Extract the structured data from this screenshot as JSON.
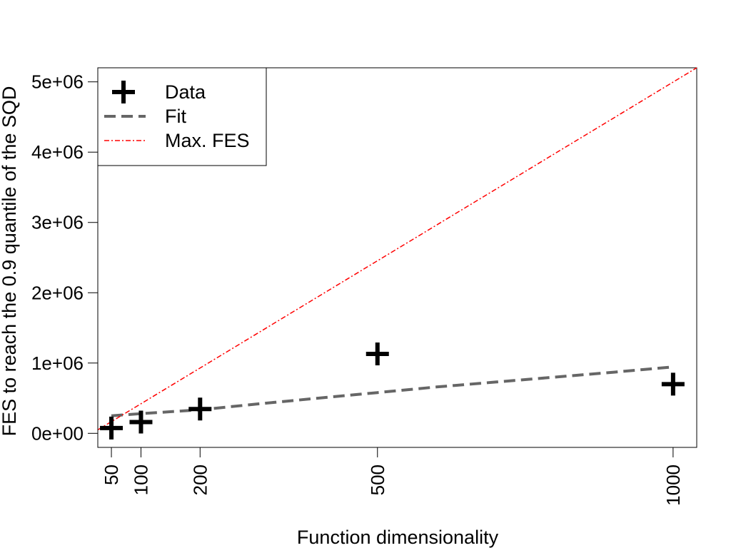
{
  "chart_data": {
    "type": "scatter",
    "title": "",
    "xlabel": "Function dimensionality",
    "ylabel": "FES to reach the 0.9 quantile of the SQD",
    "xlim": [
      27,
      1040
    ],
    "ylim": [
      -200000,
      5200000
    ],
    "x_ticks": [
      50,
      100,
      200,
      500,
      1000
    ],
    "x_tick_labels": [
      "50",
      "100",
      "200",
      "500",
      "1000"
    ],
    "y_ticks": [
      0,
      1000000,
      2000000,
      3000000,
      4000000,
      5000000
    ],
    "y_tick_labels": [
      "0e+00",
      "1e+06",
      "2e+06",
      "3e+06",
      "4e+06",
      "5e+06"
    ],
    "grid": false,
    "legend_position": "top-left",
    "series": [
      {
        "name": "Data",
        "style": "plus-marker",
        "color": "#000000",
        "x": [
          50,
          100,
          200,
          500,
          1000
        ],
        "y": [
          75000,
          160000,
          345000,
          1130000,
          700000
        ]
      },
      {
        "name": "Fit",
        "style": "dashed-line",
        "color": "#666666",
        "x": [
          50,
          100,
          200,
          300,
          400,
          500,
          600,
          700,
          800,
          900,
          1000
        ],
        "y": [
          250000,
          280000,
          335000,
          420000,
          500000,
          580000,
          660000,
          730000,
          800000,
          870000,
          945000
        ]
      },
      {
        "name": "Max. FES",
        "style": "dot-dash-line",
        "color": "#ff0000",
        "x": [
          27,
          1040
        ],
        "y": [
          50000,
          5200000
        ]
      }
    ]
  }
}
